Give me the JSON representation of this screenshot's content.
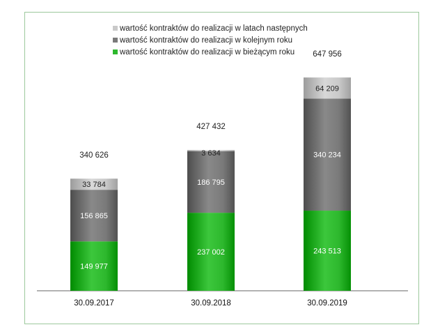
{
  "chart_data": {
    "type": "bar",
    "stacked": true,
    "categories": [
      "30.09.2017",
      "30.09.2018",
      "30.09.2019"
    ],
    "series": [
      {
        "name": "wartość kontraktów do realizacji w bieżącym roku",
        "values": [
          149977,
          237002,
          243513
        ],
        "labels": [
          "149 977",
          "237 002",
          "243 513"
        ],
        "color": "#2db82d"
      },
      {
        "name": "wartość kontraktów do realizacji w kolejnym roku",
        "values": [
          156865,
          186795,
          340234
        ],
        "labels": [
          "156 865",
          "186 795",
          "340 234"
        ],
        "color": "#7a7a7a"
      },
      {
        "name": "wartość kontraktów do realizacji w latach następnych",
        "values": [
          33784,
          3634,
          64209
        ],
        "labels": [
          "33 784",
          "3 634",
          "64 209"
        ],
        "color": "#c9c9c9"
      }
    ],
    "totals": [
      340626,
      427432,
      647956
    ],
    "total_labels": [
      "340 626",
      "427 432",
      "647 956"
    ],
    "legend_order": [
      2,
      1,
      0
    ],
    "legend_position": "top",
    "grid": false,
    "ylim": [
      0,
      680000
    ],
    "colors": {
      "frame_border": "#9cc89c",
      "axis": "#666666",
      "label_light": "#ffffff",
      "label_dark": "#222222"
    }
  }
}
